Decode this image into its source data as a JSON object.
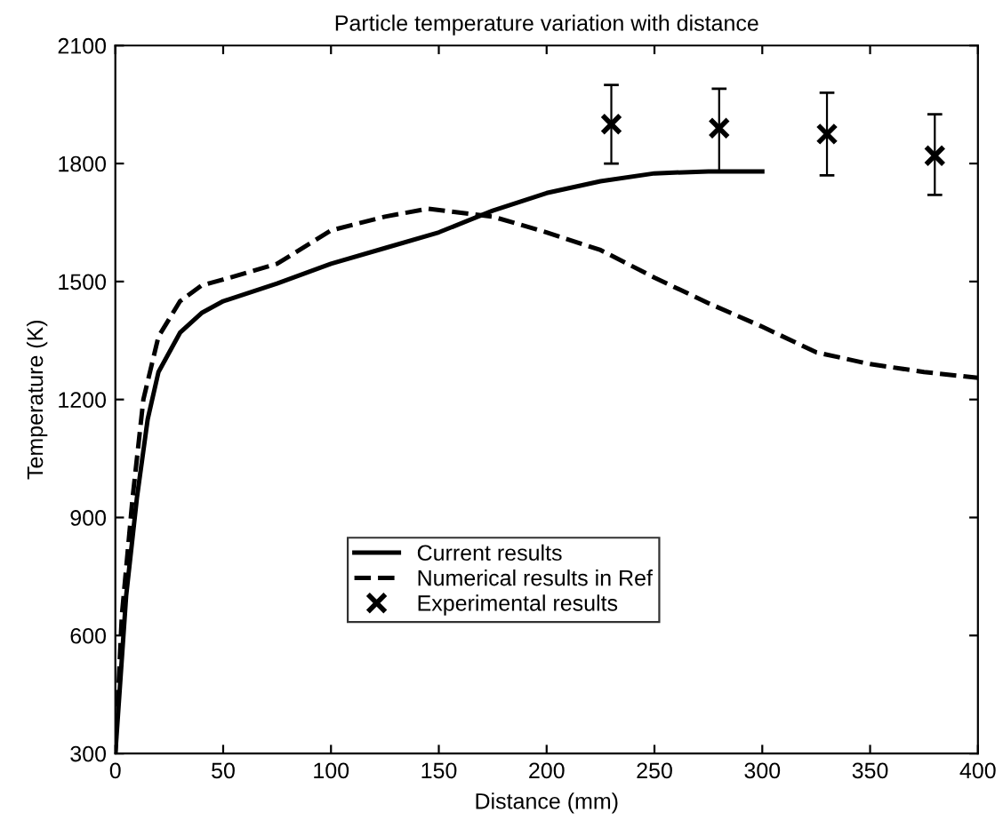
{
  "chart_data": {
    "type": "line",
    "title": "Particle temperature variation with distance",
    "xlabel": "Distance (mm)",
    "ylabel": "Temperature (K)",
    "xlim": [
      0,
      400
    ],
    "xticks": [
      0,
      50,
      100,
      150,
      200,
      250,
      300,
      350,
      400
    ],
    "ylim": [
      300,
      2100
    ],
    "yticks": [
      300,
      600,
      900,
      1200,
      1500,
      1800,
      2100
    ],
    "grid": false,
    "legend": "bottom",
    "series": [
      {
        "name": "Current results",
        "color": "#000000",
        "line_style": "solid",
        "marker": "none",
        "x": [
          0,
          5,
          10,
          15,
          20,
          30,
          40,
          50,
          75,
          100,
          125,
          150,
          175,
          200,
          225,
          250,
          275,
          300
        ],
        "values": [
          300,
          700,
          950,
          1150,
          1270,
          1370,
          1420,
          1450,
          1495,
          1545,
          1585,
          1625,
          1680,
          1725,
          1755,
          1775,
          1780,
          1780
        ]
      },
      {
        "name": "Numerical results in Ref",
        "color": "#000000",
        "line_style": "dashed",
        "marker": "none",
        "x": [
          0,
          3,
          8,
          13,
          20,
          30,
          40,
          50,
          75,
          100,
          125,
          145,
          175,
          200,
          225,
          250,
          275,
          300,
          325,
          350,
          375,
          400
        ],
        "values": [
          300,
          650,
          950,
          1200,
          1360,
          1450,
          1490,
          1505,
          1545,
          1630,
          1665,
          1685,
          1665,
          1625,
          1580,
          1510,
          1445,
          1385,
          1320,
          1290,
          1270,
          1255
        ]
      },
      {
        "name": "Experimental results",
        "type": "scatter",
        "color": "#000000",
        "marker": "cross",
        "x": [
          230,
          280,
          330,
          380
        ],
        "values": [
          1900,
          1890,
          1875,
          1820
        ],
        "errors": [
          [
            1800,
            2000
          ],
          [
            1780,
            1990
          ],
          [
            1770,
            1980
          ],
          [
            1720,
            1925
          ]
        ]
      }
    ]
  }
}
